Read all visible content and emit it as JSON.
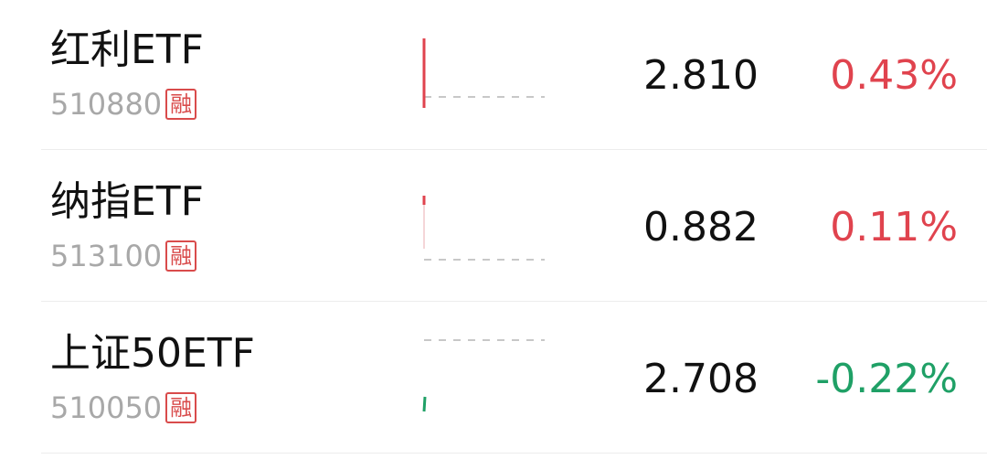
{
  "colors": {
    "up": "#e0434e",
    "down": "#1fa066",
    "baseline": "#c8c8c8"
  },
  "rows": [
    {
      "name": "红利ETF",
      "code": "510880",
      "badge": "融",
      "price": "2.810",
      "change": "0.43%",
      "direction": "up"
    },
    {
      "name": "纳指ETF",
      "code": "513100",
      "badge": "融",
      "price": "0.882",
      "change": "0.11%",
      "direction": "up"
    },
    {
      "name": "上证50ETF",
      "code": "510050",
      "badge": "融",
      "price": "2.708",
      "change": "-0.22%",
      "direction": "down"
    }
  ]
}
